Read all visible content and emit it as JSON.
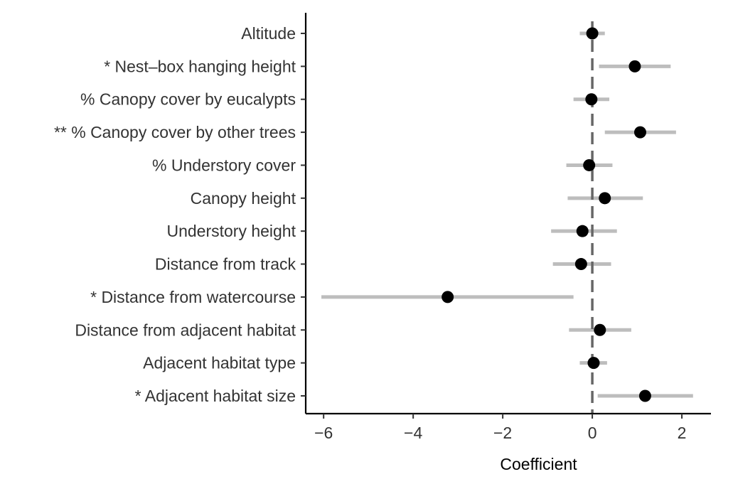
{
  "chart_data": {
    "type": "scatter",
    "subtype": "coefficient-plot-with-intervals",
    "title": "",
    "xlabel": "Coefficient",
    "ylabel": "",
    "xlim": [
      -6.4,
      2.65
    ],
    "xticks": [
      -6,
      -4,
      -2,
      0,
      2
    ],
    "xtick_labels": [
      "−6",
      "−4",
      "−2",
      "0",
      "2"
    ],
    "reference_line": {
      "x": 0,
      "style": "dashed"
    },
    "grid": false,
    "legend": "none",
    "colors": {
      "point": "#000000",
      "interval": "#bdbdbd",
      "reference_line": "#666666",
      "axis": "#000000",
      "label_text": "#333333"
    },
    "categories": [
      "Altitude",
      "* Nest–box hanging height",
      "% Canopy cover by eucalypts",
      "** % Canopy cover by other trees",
      "% Understory cover",
      "Canopy height",
      "Understory height",
      "Distance from track",
      "* Distance from watercourse",
      "Distance from adjacent habitat",
      "Adjacent habitat type",
      "* Adjacent habitat size"
    ],
    "estimates": [
      0.0,
      0.95,
      -0.02,
      1.07,
      -0.07,
      0.28,
      -0.22,
      -0.25,
      -3.23,
      0.17,
      0.03,
      1.18
    ],
    "lower": [
      -0.28,
      0.15,
      -0.42,
      0.28,
      -0.58,
      -0.55,
      -0.92,
      -0.88,
      -6.05,
      -0.52,
      -0.28,
      0.12
    ],
    "upper": [
      0.28,
      1.75,
      0.38,
      1.87,
      0.45,
      1.13,
      0.55,
      0.42,
      -0.42,
      0.87,
      0.33,
      2.25
    ]
  }
}
